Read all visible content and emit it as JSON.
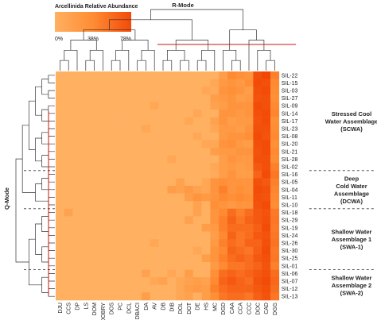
{
  "chart_data": {
    "type": "heatmap",
    "title": "R-Mode",
    "row_dendrogram_label": "Q-Mode",
    "legend": {
      "title": "Arcellinida Relative Abundance",
      "ticks": [
        "0%",
        "38%",
        "78%"
      ],
      "range": [
        0,
        78
      ],
      "colors": [
        "#ffb061",
        "#ff8c33",
        "#f44a08"
      ]
    },
    "colors": {
      "low": "#ffb061",
      "mid": "#ff8c33",
      "high": "#f04000",
      "cut_line": "#d41111",
      "divider": "#333333"
    },
    "columns": [
      "DJU",
      "CCS",
      "DP",
      "LS",
      "DOM",
      "DOBRY",
      "DOS",
      "PC",
      "DCL",
      "DBACI",
      "DA",
      "AV",
      "DB",
      "DIB",
      "DOL",
      "DOT",
      "DE",
      "HS",
      "MC",
      "DGD",
      "CAA",
      "CCA",
      "CCC",
      "DOC",
      "CAD",
      "DGG"
    ],
    "rows": [
      "SIL-22",
      "SIL-15",
      "SIL-03",
      "SIL-27",
      "SIL-09",
      "SIL-14",
      "SIL-17",
      "SIL-23",
      "SIL-08",
      "SIL-20",
      "SIL-21",
      "SIL-28",
      "SIL-02",
      "SIL-16",
      "SIL-05",
      "SIL-04",
      "SIL-11",
      "SIL-10",
      "SIL-18",
      "SIL-29",
      "SIL-19",
      "SIL-24",
      "SIL-26",
      "SIL-30",
      "SIL-25",
      "SIL-01",
      "SIL-06",
      "SIL-07",
      "SIL-12",
      "SIL-13"
    ],
    "groups": [
      {
        "lines": [
          "Stressed Cool",
          "Water Assemblage",
          "(SCWA)"
        ],
        "rows": [
          0,
          12
        ]
      },
      {
        "lines": [
          "Deep",
          "Cold Water",
          "Assemblage",
          "(DCWA)"
        ],
        "rows": [
          13,
          17
        ]
      },
      {
        "lines": [
          "Shallow Water",
          "Assemblage 1",
          "(SWA-1)"
        ],
        "rows": [
          18,
          25
        ]
      },
      {
        "lines": [
          "Shallow Water",
          "Assemblage 2",
          "(SWA-2)"
        ],
        "rows": [
          26,
          29
        ]
      }
    ],
    "values": [
      [
        0,
        0,
        0,
        0,
        0,
        0,
        0,
        0,
        0,
        0,
        0,
        0,
        0,
        0,
        0,
        0,
        0,
        0,
        0,
        20,
        40,
        35,
        30,
        70,
        75,
        45
      ],
      [
        0,
        0,
        0,
        0,
        0,
        0,
        0,
        0,
        0,
        0,
        0,
        0,
        0,
        0,
        0,
        0,
        0,
        0,
        10,
        25,
        30,
        25,
        35,
        72,
        70,
        40
      ],
      [
        0,
        0,
        0,
        0,
        0,
        0,
        0,
        0,
        0,
        0,
        0,
        0,
        0,
        0,
        0,
        0,
        0,
        10,
        5,
        30,
        35,
        30,
        20,
        70,
        72,
        38
      ],
      [
        0,
        0,
        0,
        0,
        0,
        0,
        0,
        0,
        0,
        0,
        0,
        0,
        0,
        0,
        0,
        0,
        0,
        0,
        20,
        25,
        30,
        20,
        25,
        68,
        70,
        35
      ],
      [
        0,
        0,
        0,
        0,
        0,
        0,
        0,
        0,
        0,
        0,
        0,
        10,
        0,
        0,
        0,
        0,
        0,
        0,
        15,
        20,
        30,
        30,
        30,
        72,
        70,
        40
      ],
      [
        0,
        0,
        0,
        0,
        0,
        0,
        0,
        0,
        0,
        0,
        0,
        0,
        0,
        0,
        0,
        0,
        10,
        0,
        0,
        30,
        30,
        25,
        30,
        70,
        72,
        42
      ],
      [
        0,
        0,
        0,
        0,
        0,
        0,
        0,
        0,
        0,
        0,
        0,
        0,
        0,
        0,
        0,
        10,
        0,
        0,
        15,
        30,
        20,
        25,
        25,
        68,
        72,
        35
      ],
      [
        0,
        0,
        0,
        0,
        0,
        0,
        0,
        0,
        0,
        0,
        10,
        0,
        0,
        0,
        0,
        0,
        0,
        0,
        10,
        25,
        25,
        20,
        30,
        70,
        70,
        38
      ],
      [
        0,
        0,
        0,
        0,
        0,
        0,
        0,
        0,
        0,
        0,
        0,
        0,
        0,
        0,
        0,
        0,
        10,
        0,
        0,
        25,
        30,
        30,
        35,
        72,
        68,
        40
      ],
      [
        0,
        0,
        0,
        0,
        0,
        0,
        0,
        0,
        0,
        0,
        0,
        0,
        0,
        0,
        0,
        0,
        0,
        10,
        10,
        30,
        35,
        25,
        20,
        70,
        72,
        35
      ],
      [
        0,
        0,
        0,
        0,
        0,
        0,
        0,
        0,
        0,
        0,
        0,
        0,
        0,
        0,
        0,
        0,
        0,
        0,
        20,
        25,
        25,
        30,
        30,
        68,
        72,
        40
      ],
      [
        0,
        0,
        0,
        0,
        0,
        0,
        0,
        0,
        0,
        0,
        0,
        0,
        0,
        10,
        0,
        0,
        0,
        0,
        0,
        20,
        30,
        25,
        25,
        70,
        70,
        38
      ],
      [
        0,
        0,
        0,
        0,
        0,
        0,
        0,
        0,
        0,
        0,
        0,
        0,
        0,
        0,
        0,
        0,
        0,
        0,
        10,
        20,
        25,
        20,
        25,
        65,
        70,
        45
      ],
      [
        0,
        0,
        0,
        0,
        0,
        0,
        0,
        0,
        0,
        0,
        0,
        0,
        0,
        0,
        0,
        0,
        0,
        0,
        5,
        20,
        30,
        20,
        20,
        60,
        72,
        50
      ],
      [
        0,
        0,
        0,
        0,
        0,
        0,
        0,
        0,
        0,
        0,
        0,
        0,
        0,
        0,
        15,
        0,
        0,
        10,
        30,
        35,
        30,
        30,
        30,
        70,
        65,
        45
      ],
      [
        0,
        0,
        0,
        0,
        0,
        0,
        0,
        0,
        0,
        0,
        0,
        0,
        0,
        20,
        15,
        25,
        15,
        10,
        30,
        45,
        30,
        35,
        30,
        72,
        70,
        42
      ],
      [
        0,
        0,
        0,
        0,
        0,
        0,
        0,
        0,
        0,
        0,
        0,
        0,
        0,
        0,
        0,
        20,
        30,
        25,
        30,
        40,
        35,
        40,
        35,
        70,
        68,
        40
      ],
      [
        0,
        0,
        0,
        0,
        0,
        0,
        0,
        0,
        0,
        0,
        0,
        0,
        0,
        0,
        0,
        0,
        15,
        0,
        35,
        30,
        25,
        30,
        30,
        68,
        72,
        38
      ],
      [
        0,
        15,
        0,
        0,
        0,
        0,
        0,
        0,
        0,
        0,
        0,
        0,
        0,
        0,
        0,
        0,
        15,
        0,
        30,
        40,
        55,
        45,
        55,
        65,
        68,
        48
      ],
      [
        0,
        0,
        0,
        0,
        0,
        0,
        0,
        0,
        0,
        0,
        0,
        0,
        0,
        0,
        0,
        15,
        0,
        0,
        30,
        45,
        60,
        50,
        60,
        65,
        70,
        50
      ],
      [
        0,
        0,
        0,
        0,
        0,
        0,
        0,
        0,
        0,
        0,
        0,
        0,
        0,
        0,
        0,
        0,
        0,
        20,
        25,
        45,
        55,
        55,
        55,
        62,
        72,
        48
      ],
      [
        0,
        0,
        0,
        0,
        0,
        0,
        0,
        0,
        0,
        0,
        0,
        0,
        0,
        0,
        0,
        0,
        0,
        0,
        20,
        40,
        60,
        50,
        55,
        65,
        68,
        50
      ],
      [
        0,
        0,
        0,
        0,
        0,
        0,
        0,
        0,
        0,
        0,
        0,
        10,
        0,
        0,
        0,
        0,
        0,
        0,
        25,
        45,
        55,
        50,
        60,
        60,
        70,
        52
      ],
      [
        0,
        0,
        0,
        0,
        0,
        0,
        0,
        0,
        0,
        0,
        0,
        0,
        0,
        0,
        0,
        0,
        10,
        0,
        30,
        40,
        60,
        55,
        50,
        62,
        72,
        48
      ],
      [
        0,
        0,
        0,
        0,
        0,
        0,
        0,
        0,
        0,
        0,
        0,
        0,
        0,
        0,
        0,
        0,
        0,
        20,
        30,
        45,
        55,
        60,
        55,
        65,
        70,
        50
      ],
      [
        0,
        0,
        0,
        0,
        0,
        0,
        0,
        0,
        0,
        0,
        0,
        0,
        0,
        0,
        0,
        0,
        0,
        0,
        25,
        40,
        50,
        50,
        55,
        60,
        68,
        45
      ],
      [
        0,
        0,
        0,
        0,
        0,
        0,
        0,
        0,
        0,
        0,
        15,
        0,
        0,
        10,
        0,
        20,
        0,
        0,
        35,
        55,
        60,
        55,
        60,
        65,
        70,
        55
      ],
      [
        0,
        0,
        0,
        0,
        0,
        0,
        0,
        0,
        0,
        0,
        0,
        10,
        15,
        0,
        10,
        15,
        20,
        15,
        40,
        60,
        65,
        60,
        55,
        68,
        72,
        58
      ],
      [
        0,
        0,
        0,
        0,
        0,
        0,
        0,
        0,
        0,
        0,
        0,
        0,
        0,
        0,
        10,
        20,
        25,
        20,
        45,
        55,
        60,
        60,
        60,
        65,
        70,
        55
      ],
      [
        0,
        0,
        0,
        0,
        0,
        0,
        0,
        0,
        0,
        0,
        20,
        0,
        0,
        0,
        10,
        15,
        0,
        20,
        35,
        50,
        55,
        55,
        50,
        62,
        68,
        50
      ]
    ]
  }
}
